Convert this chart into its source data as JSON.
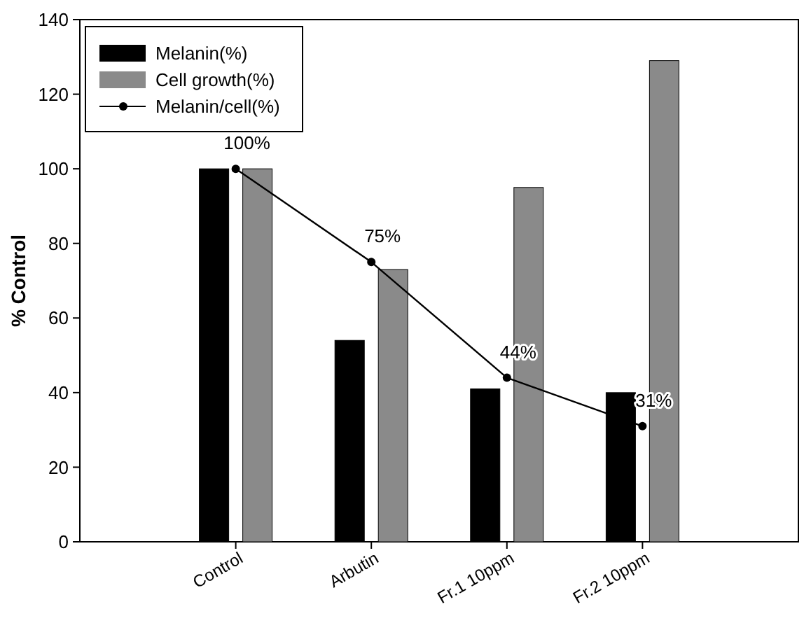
{
  "chart_data": {
    "type": "bar",
    "ylabel": "% Control",
    "categories": [
      "Control",
      "Arbutin",
      "Fr.1 10ppm",
      "Fr.2 10ppm"
    ],
    "ylim": [
      0,
      140
    ],
    "yticks": [
      0,
      20,
      40,
      60,
      80,
      100,
      120,
      140
    ],
    "legend": "top left",
    "series": [
      {
        "name": "Melanin(%)",
        "color": "#000000",
        "values": [
          100,
          54,
          41,
          40
        ]
      },
      {
        "name": "Cell growth(%)",
        "color": "#8a8a8a",
        "values": [
          100,
          73,
          95,
          129
        ]
      },
      {
        "name": "Melanin/cell(%)",
        "type": "line",
        "color": "#000000",
        "marker": "circle",
        "values": [
          100,
          75,
          44,
          31
        ],
        "value_labels": [
          "100%",
          "75%",
          "44%",
          "31%"
        ]
      }
    ]
  }
}
